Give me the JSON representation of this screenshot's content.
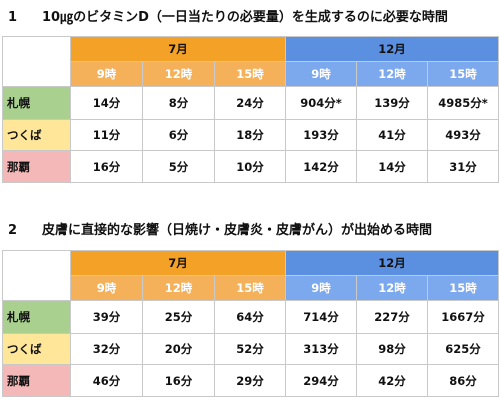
{
  "sections": [
    {
      "number": "1",
      "title": "10㎍のビタミンD（一日当たりの必要量）を生成するのに必要な時間",
      "months": [
        "7月",
        "12月"
      ],
      "hours": [
        "9時",
        "12時",
        "15時",
        "9時",
        "12時",
        "15時"
      ],
      "rows": [
        {
          "city": "札幌",
          "values": [
            "14分",
            "8分",
            "24分",
            "904分*",
            "139分",
            "4985分*"
          ]
        },
        {
          "city": "つくば",
          "values": [
            "11分",
            "6分",
            "18分",
            "193分",
            "41分",
            "493分"
          ]
        },
        {
          "city": "那覇",
          "values": [
            "16分",
            "5分",
            "10分",
            "142分",
            "14分",
            "31分"
          ]
        }
      ]
    },
    {
      "number": "2",
      "title": "皮膚に直接的な影響（日焼け・皮膚炎・皮膚がん）が出始める時間",
      "months": [
        "7月",
        "12月"
      ],
      "hours": [
        "9時",
        "12時",
        "15時",
        "9時",
        "12時",
        "15時"
      ],
      "rows": [
        {
          "city": "札幌",
          "values": [
            "39分",
            "25分",
            "64分",
            "714分",
            "227分",
            "1667分"
          ]
        },
        {
          "city": "つくば",
          "values": [
            "32分",
            "20分",
            "52分",
            "313分",
            "98分",
            "625分"
          ]
        },
        {
          "city": "那覇",
          "values": [
            "46分",
            "16分",
            "29分",
            "294分",
            "42分",
            "86分"
          ]
        }
      ]
    }
  ],
  "colors": {
    "july_header": "#f4a128",
    "december_header": "#5b8fe0",
    "sapporo": "#a9d08e",
    "tsukuba": "#ffe699",
    "naha": "#f4b8b8"
  }
}
